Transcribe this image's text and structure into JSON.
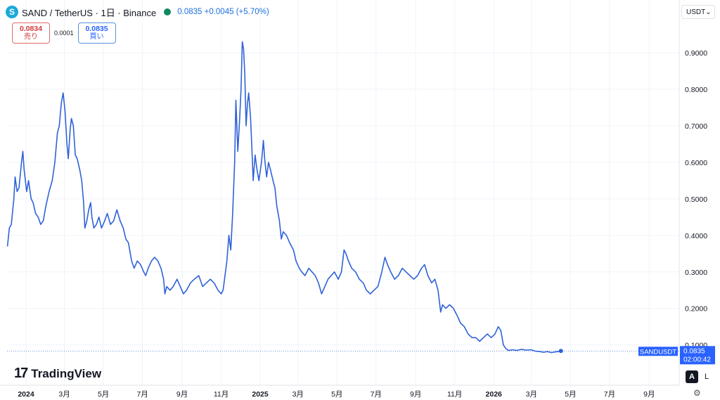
{
  "header": {
    "logo_glyph": "S",
    "title": "SAND / TetherUS · 1日 · Binance",
    "price_text": "0.0835 +0.0045 (+5.70%)"
  },
  "trade": {
    "sell_price": "0.0834",
    "sell_label": "売り",
    "spread": "0.0001",
    "buy_price": "0.0835",
    "buy_label": "買い"
  },
  "currency_select": {
    "value": "USDT"
  },
  "branding": {
    "mark": "17",
    "name": "TradingView"
  },
  "toolbar": {
    "auto_label": "A",
    "log_label": "L"
  },
  "colors": {
    "line": "#2f62d8",
    "accent": "#2962ff",
    "grid": "#f0f3fa",
    "axis_text": "#131722"
  },
  "chart_data": {
    "type": "line",
    "title": "",
    "xlabel": "",
    "ylabel": "",
    "ylim": [
      0.03,
      0.97
    ],
    "grid": true,
    "y_ticks": [
      0.1,
      0.2,
      0.3,
      0.4,
      0.5,
      0.6,
      0.7,
      0.8,
      0.9
    ],
    "y_tick_labels": [
      "0.1000",
      "0.2000",
      "0.3000",
      "0.4000",
      "0.5000",
      "0.6000",
      "0.7000",
      "0.8000",
      "0.9000"
    ],
    "x_ticks": [
      {
        "date": "2024-01-01",
        "label": "2024",
        "bold": true
      },
      {
        "date": "2024-03-01",
        "label": "3月"
      },
      {
        "date": "2024-05-01",
        "label": "5月"
      },
      {
        "date": "2024-07-01",
        "label": "7月"
      },
      {
        "date": "2024-09-01",
        "label": "9月"
      },
      {
        "date": "2024-11-01",
        "label": "11月"
      },
      {
        "date": "2025-01-01",
        "label": "2025",
        "bold": true
      },
      {
        "date": "2025-03-01",
        "label": "3月"
      },
      {
        "date": "2025-05-01",
        "label": "5月"
      },
      {
        "date": "2025-07-01",
        "label": "7月"
      },
      {
        "date": "2025-09-01",
        "label": "9月"
      },
      {
        "date": "2025-11-01",
        "label": "11月"
      },
      {
        "date": "2026-01-01",
        "label": "2026",
        "bold": true
      },
      {
        "date": "2026-03-01",
        "label": "3月"
      },
      {
        "date": "2026-05-01",
        "label": "5月"
      },
      {
        "date": "2026-07-01",
        "label": "7月"
      },
      {
        "date": "2026-09-01",
        "label": "9月"
      }
    ],
    "last_price": {
      "value": 0.0835,
      "symbol": "SANDUSDT",
      "label": "0.0835",
      "countdown": "02:00:42"
    },
    "series": [
      {
        "points": [
          [
            "2023-12-03",
            0.37
          ],
          [
            "2023-12-06",
            0.42
          ],
          [
            "2023-12-09",
            0.43
          ],
          [
            "2023-12-13",
            0.5
          ],
          [
            "2023-12-15",
            0.56
          ],
          [
            "2023-12-18",
            0.52
          ],
          [
            "2023-12-21",
            0.53
          ],
          [
            "2023-12-25",
            0.6
          ],
          [
            "2023-12-27",
            0.63
          ],
          [
            "2023-12-29",
            0.58
          ],
          [
            "2024-01-02",
            0.52
          ],
          [
            "2024-01-05",
            0.55
          ],
          [
            "2024-01-09",
            0.5
          ],
          [
            "2024-01-12",
            0.49
          ],
          [
            "2024-01-16",
            0.46
          ],
          [
            "2024-01-20",
            0.45
          ],
          [
            "2024-01-24",
            0.43
          ],
          [
            "2024-01-28",
            0.44
          ],
          [
            "2024-02-01",
            0.48
          ],
          [
            "2024-02-06",
            0.52
          ],
          [
            "2024-02-11",
            0.55
          ],
          [
            "2024-02-15",
            0.6
          ],
          [
            "2024-02-19",
            0.68
          ],
          [
            "2024-02-22",
            0.7
          ],
          [
            "2024-02-25",
            0.76
          ],
          [
            "2024-02-28",
            0.79
          ],
          [
            "2024-03-02",
            0.74
          ],
          [
            "2024-03-05",
            0.65
          ],
          [
            "2024-03-07",
            0.61
          ],
          [
            "2024-03-10",
            0.69
          ],
          [
            "2024-03-12",
            0.72
          ],
          [
            "2024-03-15",
            0.7
          ],
          [
            "2024-03-18",
            0.62
          ],
          [
            "2024-03-21",
            0.61
          ],
          [
            "2024-03-25",
            0.58
          ],
          [
            "2024-03-28",
            0.55
          ],
          [
            "2024-03-31",
            0.49
          ],
          [
            "2024-04-02",
            0.42
          ],
          [
            "2024-04-05",
            0.44
          ],
          [
            "2024-04-08",
            0.47
          ],
          [
            "2024-04-11",
            0.49
          ],
          [
            "2024-04-13",
            0.45
          ],
          [
            "2024-04-16",
            0.42
          ],
          [
            "2024-04-20",
            0.43
          ],
          [
            "2024-04-24",
            0.45
          ],
          [
            "2024-04-28",
            0.42
          ],
          [
            "2024-05-03",
            0.44
          ],
          [
            "2024-05-07",
            0.46
          ],
          [
            "2024-05-12",
            0.43
          ],
          [
            "2024-05-17",
            0.44
          ],
          [
            "2024-05-22",
            0.47
          ],
          [
            "2024-05-27",
            0.44
          ],
          [
            "2024-06-01",
            0.42
          ],
          [
            "2024-06-05",
            0.39
          ],
          [
            "2024-06-09",
            0.38
          ],
          [
            "2024-06-14",
            0.33
          ],
          [
            "2024-06-18",
            0.31
          ],
          [
            "2024-06-23",
            0.33
          ],
          [
            "2024-06-28",
            0.32
          ],
          [
            "2024-07-03",
            0.3
          ],
          [
            "2024-07-06",
            0.29
          ],
          [
            "2024-07-10",
            0.31
          ],
          [
            "2024-07-15",
            0.33
          ],
          [
            "2024-07-20",
            0.34
          ],
          [
            "2024-07-25",
            0.33
          ],
          [
            "2024-07-30",
            0.31
          ],
          [
            "2024-08-03",
            0.28
          ],
          [
            "2024-08-05",
            0.24
          ],
          [
            "2024-08-08",
            0.26
          ],
          [
            "2024-08-13",
            0.25
          ],
          [
            "2024-08-18",
            0.26
          ],
          [
            "2024-08-24",
            0.28
          ],
          [
            "2024-08-29",
            0.26
          ],
          [
            "2024-09-03",
            0.24
          ],
          [
            "2024-09-08",
            0.25
          ],
          [
            "2024-09-14",
            0.27
          ],
          [
            "2024-09-20",
            0.28
          ],
          [
            "2024-09-27",
            0.29
          ],
          [
            "2024-10-03",
            0.26
          ],
          [
            "2024-10-09",
            0.27
          ],
          [
            "2024-10-15",
            0.28
          ],
          [
            "2024-10-21",
            0.27
          ],
          [
            "2024-10-27",
            0.25
          ],
          [
            "2024-11-01",
            0.24
          ],
          [
            "2024-11-04",
            0.25
          ],
          [
            "2024-11-07",
            0.29
          ],
          [
            "2024-11-10",
            0.33
          ],
          [
            "2024-11-13",
            0.4
          ],
          [
            "2024-11-16",
            0.36
          ],
          [
            "2024-11-19",
            0.46
          ],
          [
            "2024-11-22",
            0.6
          ],
          [
            "2024-11-24",
            0.77
          ],
          [
            "2024-11-27",
            0.63
          ],
          [
            "2024-11-30",
            0.72
          ],
          [
            "2024-12-02",
            0.8
          ],
          [
            "2024-12-04",
            0.93
          ],
          [
            "2024-12-06",
            0.91
          ],
          [
            "2024-12-08",
            0.84
          ],
          [
            "2024-12-10",
            0.7
          ],
          [
            "2024-12-12",
            0.76
          ],
          [
            "2024-12-14",
            0.79
          ],
          [
            "2024-12-17",
            0.72
          ],
          [
            "2024-12-19",
            0.64
          ],
          [
            "2024-12-21",
            0.55
          ],
          [
            "2024-12-24",
            0.62
          ],
          [
            "2024-12-27",
            0.58
          ],
          [
            "2024-12-30",
            0.55
          ],
          [
            "2025-01-03",
            0.6
          ],
          [
            "2025-01-06",
            0.66
          ],
          [
            "2025-01-08",
            0.61
          ],
          [
            "2025-01-11",
            0.56
          ],
          [
            "2025-01-14",
            0.6
          ],
          [
            "2025-01-17",
            0.58
          ],
          [
            "2025-01-21",
            0.55
          ],
          [
            "2025-01-24",
            0.53
          ],
          [
            "2025-01-27",
            0.48
          ],
          [
            "2025-01-31",
            0.44
          ],
          [
            "2025-02-03",
            0.39
          ],
          [
            "2025-02-06",
            0.41
          ],
          [
            "2025-02-11",
            0.4
          ],
          [
            "2025-02-16",
            0.38
          ],
          [
            "2025-02-22",
            0.36
          ],
          [
            "2025-02-26",
            0.33
          ],
          [
            "2025-03-03",
            0.31
          ],
          [
            "2025-03-07",
            0.3
          ],
          [
            "2025-03-12",
            0.29
          ],
          [
            "2025-03-18",
            0.31
          ],
          [
            "2025-03-23",
            0.3
          ],
          [
            "2025-03-28",
            0.29
          ],
          [
            "2025-04-02",
            0.27
          ],
          [
            "2025-04-07",
            0.24
          ],
          [
            "2025-04-12",
            0.26
          ],
          [
            "2025-04-17",
            0.28
          ],
          [
            "2025-04-22",
            0.29
          ],
          [
            "2025-04-27",
            0.3
          ],
          [
            "2025-05-03",
            0.28
          ],
          [
            "2025-05-08",
            0.3
          ],
          [
            "2025-05-12",
            0.36
          ],
          [
            "2025-05-15",
            0.35
          ],
          [
            "2025-05-19",
            0.33
          ],
          [
            "2025-05-24",
            0.31
          ],
          [
            "2025-05-30",
            0.3
          ],
          [
            "2025-06-05",
            0.28
          ],
          [
            "2025-06-11",
            0.27
          ],
          [
            "2025-06-16",
            0.25
          ],
          [
            "2025-06-22",
            0.24
          ],
          [
            "2025-06-28",
            0.25
          ],
          [
            "2025-07-04",
            0.26
          ],
          [
            "2025-07-10",
            0.3
          ],
          [
            "2025-07-15",
            0.34
          ],
          [
            "2025-07-19",
            0.32
          ],
          [
            "2025-07-24",
            0.3
          ],
          [
            "2025-07-30",
            0.28
          ],
          [
            "2025-08-05",
            0.29
          ],
          [
            "2025-08-11",
            0.31
          ],
          [
            "2025-08-17",
            0.3
          ],
          [
            "2025-08-23",
            0.29
          ],
          [
            "2025-08-29",
            0.28
          ],
          [
            "2025-09-04",
            0.29
          ],
          [
            "2025-09-10",
            0.31
          ],
          [
            "2025-09-15",
            0.32
          ],
          [
            "2025-09-20",
            0.29
          ],
          [
            "2025-09-26",
            0.27
          ],
          [
            "2025-10-01",
            0.28
          ],
          [
            "2025-10-06",
            0.25
          ],
          [
            "2025-10-10",
            0.19
          ],
          [
            "2025-10-13",
            0.21
          ],
          [
            "2025-10-18",
            0.2
          ],
          [
            "2025-10-24",
            0.21
          ],
          [
            "2025-10-30",
            0.2
          ],
          [
            "2025-11-05",
            0.18
          ],
          [
            "2025-11-10",
            0.16
          ],
          [
            "2025-11-16",
            0.15
          ],
          [
            "2025-11-22",
            0.13
          ],
          [
            "2025-11-28",
            0.12
          ],
          [
            "2025-12-04",
            0.12
          ],
          [
            "2025-12-10",
            0.11
          ],
          [
            "2025-12-16",
            0.12
          ],
          [
            "2025-12-22",
            0.13
          ],
          [
            "2025-12-28",
            0.12
          ],
          [
            "2026-01-03",
            0.13
          ],
          [
            "2026-01-08",
            0.15
          ],
          [
            "2026-01-12",
            0.14
          ],
          [
            "2026-01-16",
            0.1
          ],
          [
            "2026-01-20",
            0.09
          ],
          [
            "2026-01-24",
            0.085
          ],
          [
            "2026-01-30",
            0.087
          ],
          [
            "2026-02-06",
            0.085
          ],
          [
            "2026-02-13",
            0.088
          ],
          [
            "2026-02-20",
            0.086
          ],
          [
            "2026-02-28",
            0.087
          ],
          [
            "2026-03-07",
            0.083
          ],
          [
            "2026-03-14",
            0.082
          ],
          [
            "2026-03-20",
            0.08
          ],
          [
            "2026-03-26",
            0.082
          ],
          [
            "2026-04-01",
            0.079
          ],
          [
            "2026-04-07",
            0.081
          ],
          [
            "2026-04-12",
            0.082
          ],
          [
            "2026-04-16",
            0.0835
          ]
        ]
      }
    ]
  }
}
